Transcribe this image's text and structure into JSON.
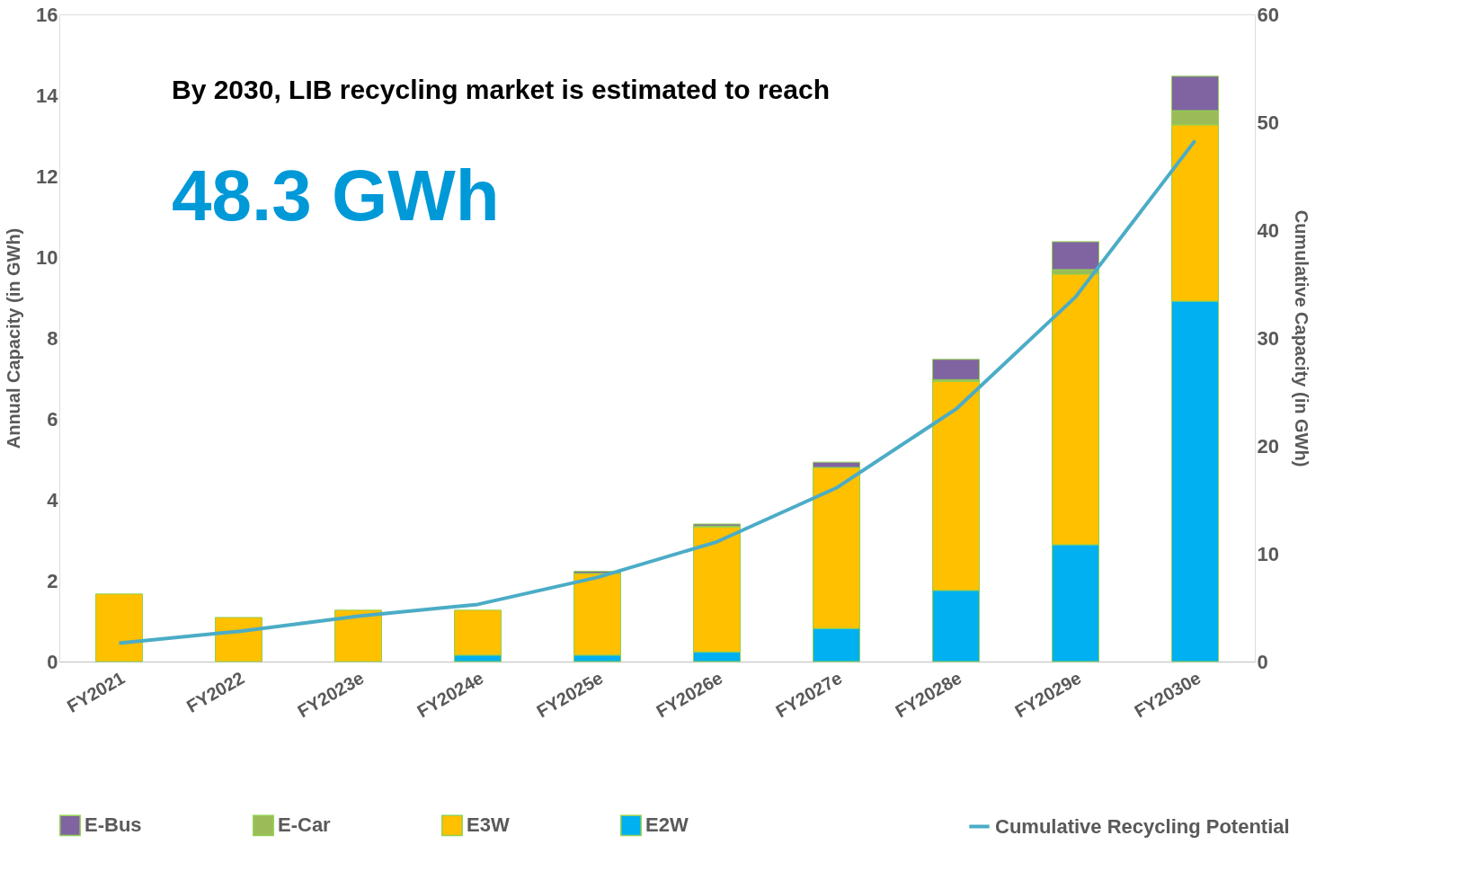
{
  "chart_data": {
    "type": "bar",
    "stacked": true,
    "categories": [
      "FY2021",
      "FY2022",
      "FY2023e",
      "FY2024e",
      "FY2025e",
      "FY2026e",
      "FY2027e",
      "FY2028e",
      "FY2029e",
      "FY2030e"
    ],
    "series": [
      {
        "name": "E2W",
        "color": "#00b0f0",
        "values": [
          null,
          null,
          null,
          0.16,
          0.16,
          0.24,
          0.82,
          1.76,
          2.89,
          8.91
        ]
      },
      {
        "name": "E3W",
        "color": "#ffc000",
        "values": [
          1.67,
          1.09,
          1.27,
          1.11,
          2.02,
          3.09,
          3.98,
          5.17,
          6.69,
          4.36
        ]
      },
      {
        "name": "E-Car",
        "color": "#9bbb59",
        "values": [
          null,
          null,
          null,
          null,
          null,
          0.02,
          null,
          0.04,
          0.11,
          0.35
        ]
      },
      {
        "name": "E-Bus",
        "color": "#8064a2",
        "values": [
          null,
          null,
          null,
          null,
          0.05,
          0.05,
          0.13,
          0.5,
          0.69,
          0.85
        ]
      },
      {
        "name": "Cumulative Recycling Potential",
        "type": "line",
        "axis": "y2",
        "color": "#4bacc6",
        "values": [
          1.7,
          2.8,
          4.2,
          5.3,
          7.8,
          11.1,
          16.1,
          23.4,
          33.8,
          48.3
        ]
      }
    ],
    "ylabel": "Annual Capacity (in GWh)",
    "y2label": "Cumulative Capacity (in GWh)",
    "ylim": [
      0,
      16
    ],
    "yticks": [
      0,
      2,
      4,
      6,
      8,
      10,
      12,
      14,
      16
    ],
    "y2lim": [
      0,
      60
    ],
    "y2ticks": [
      0,
      10,
      20,
      30,
      40,
      50,
      60
    ],
    "annotations": [
      "By 2030, LIB recycling market is estimated to reach",
      "48.3 GWh"
    ],
    "grid": false,
    "legend": "bottom"
  }
}
